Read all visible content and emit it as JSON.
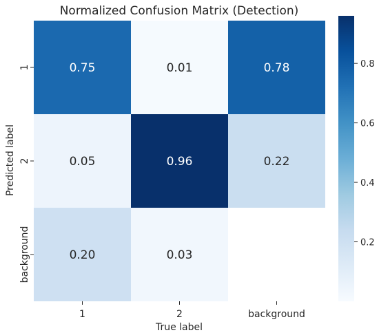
{
  "chart_data": {
    "type": "heatmap",
    "title": "Normalized Confusion Matrix (Detection)",
    "xlabel": "True label",
    "ylabel": "Predicted label",
    "x_categories": [
      "1",
      "2",
      "background"
    ],
    "y_categories": [
      "1",
      "2",
      "background"
    ],
    "values": [
      [
        0.75,
        0.01,
        0.78
      ],
      [
        0.05,
        0.96,
        0.22
      ],
      [
        0.2,
        0.03,
        null
      ]
    ],
    "cell_labels": [
      [
        "0.75",
        "0.01",
        "0.78"
      ],
      [
        "0.05",
        "0.96",
        "0.22"
      ],
      [
        "0.20",
        "0.03",
        ""
      ]
    ],
    "colormap": "Blues",
    "color_range": [
      0,
      0.96
    ],
    "colorbar_ticks": [
      0.2,
      0.4,
      0.6,
      0.8
    ],
    "colorbar_tick_labels": [
      "0.2",
      "0.4",
      "0.6",
      "0.8"
    ],
    "colors": {
      "low": "#f7fbff",
      "high": "#08306b"
    }
  }
}
